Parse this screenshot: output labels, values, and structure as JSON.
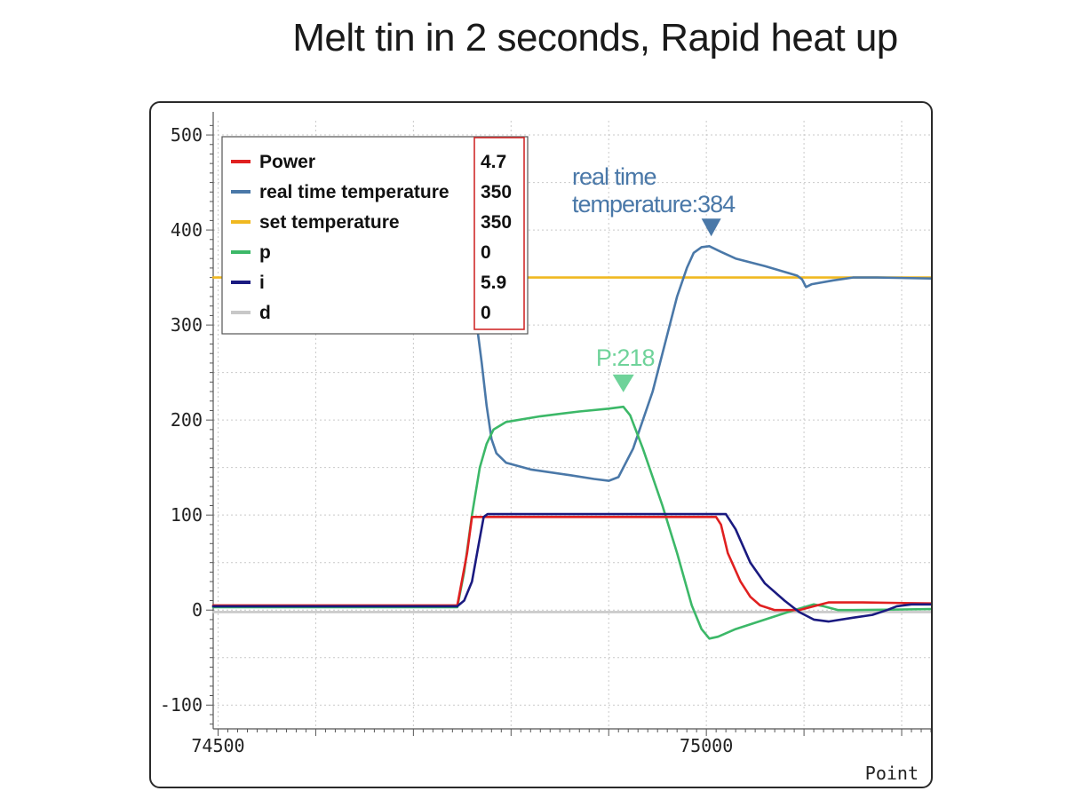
{
  "headline": "Melt tin in 2 seconds,  Rapid heat up",
  "chart_data": {
    "type": "line",
    "xlabel": "Point",
    "ylabel": "",
    "xlim": [
      74495,
      75230
    ],
    "ylim": [
      -125,
      515
    ],
    "x_ticks": [
      74500,
      75000
    ],
    "y_ticks": [
      500,
      400,
      300,
      200,
      100,
      0,
      -100
    ],
    "grid": true,
    "legend_position": "top-left",
    "legend": [
      {
        "name": "Power",
        "value": "4.7",
        "color": "#e02020"
      },
      {
        "name": "real time temperature",
        "value": "350",
        "color": "#4a78a8"
      },
      {
        "name": "set temperature",
        "value": "350",
        "color": "#f0b820"
      },
      {
        "name": "p",
        "value": "0",
        "color": "#3cb868"
      },
      {
        "name": "i",
        "value": "5.9",
        "color": "#1a1a80"
      },
      {
        "name": "d",
        "value": "0",
        "color": "#c8c8c8"
      }
    ],
    "series": [
      {
        "name": "set temperature",
        "color": "#f0b820",
        "points": [
          [
            74495,
            350
          ],
          [
            75230,
            350
          ]
        ]
      },
      {
        "name": "d",
        "color": "#c8c8c8",
        "points": [
          [
            74495,
            -2
          ],
          [
            75230,
            -2
          ]
        ]
      },
      {
        "name": "real time temperature",
        "color": "#4a78a8",
        "points": [
          [
            74765,
            300
          ],
          [
            74770,
            260
          ],
          [
            74775,
            215
          ],
          [
            74780,
            180
          ],
          [
            74785,
            165
          ],
          [
            74795,
            155
          ],
          [
            74820,
            148
          ],
          [
            74860,
            142
          ],
          [
            74885,
            138
          ],
          [
            74900,
            136
          ],
          [
            74910,
            140
          ],
          [
            74925,
            170
          ],
          [
            74945,
            230
          ],
          [
            74960,
            290
          ],
          [
            74970,
            330
          ],
          [
            74980,
            360
          ],
          [
            74987,
            376
          ],
          [
            74995,
            382
          ],
          [
            75003,
            383
          ],
          [
            75015,
            377
          ],
          [
            75030,
            370
          ],
          [
            75060,
            362
          ],
          [
            75080,
            356
          ],
          [
            75093,
            352
          ],
          [
            75098,
            348
          ],
          [
            75102,
            340
          ],
          [
            75108,
            343
          ],
          [
            75130,
            347
          ],
          [
            75150,
            350
          ],
          [
            75175,
            350
          ],
          [
            75230,
            349
          ]
        ]
      },
      {
        "name": "p",
        "color": "#3cb868",
        "points": [
          [
            74495,
            3
          ],
          [
            74745,
            3
          ],
          [
            74752,
            40
          ],
          [
            74760,
            100
          ],
          [
            74768,
            150
          ],
          [
            74775,
            175
          ],
          [
            74782,
            190
          ],
          [
            74795,
            198
          ],
          [
            74830,
            204
          ],
          [
            74870,
            209
          ],
          [
            74900,
            212
          ],
          [
            74915,
            214
          ],
          [
            74922,
            205
          ],
          [
            74935,
            170
          ],
          [
            74955,
            110
          ],
          [
            74970,
            60
          ],
          [
            74985,
            5
          ],
          [
            74995,
            -20
          ],
          [
            75003,
            -30
          ],
          [
            75012,
            -28
          ],
          [
            75030,
            -20
          ],
          [
            75060,
            -10
          ],
          [
            75090,
            0
          ],
          [
            75110,
            6
          ],
          [
            75120,
            4
          ],
          [
            75135,
            0
          ],
          [
            75150,
            0
          ],
          [
            75230,
            1
          ]
        ]
      },
      {
        "name": "Power",
        "color": "#e02020",
        "points": [
          [
            74495,
            5
          ],
          [
            74745,
            5
          ],
          [
            74755,
            60
          ],
          [
            74760,
            98
          ],
          [
            74765,
            98
          ],
          [
            75010,
            98
          ],
          [
            75015,
            90
          ],
          [
            75022,
            60
          ],
          [
            75035,
            30
          ],
          [
            75045,
            14
          ],
          [
            75055,
            5
          ],
          [
            75070,
            0
          ],
          [
            75095,
            0
          ],
          [
            75110,
            4
          ],
          [
            75125,
            8
          ],
          [
            75160,
            8
          ],
          [
            75230,
            7
          ]
        ]
      },
      {
        "name": "i",
        "color": "#1a1a80",
        "points": [
          [
            74495,
            4
          ],
          [
            74745,
            4
          ],
          [
            74752,
            10
          ],
          [
            74760,
            30
          ],
          [
            74767,
            70
          ],
          [
            74772,
            98
          ],
          [
            74776,
            101
          ],
          [
            75020,
            101
          ],
          [
            75030,
            85
          ],
          [
            75045,
            50
          ],
          [
            75060,
            28
          ],
          [
            75080,
            10
          ],
          [
            75095,
            -2
          ],
          [
            75110,
            -10
          ],
          [
            75125,
            -12
          ],
          [
            75150,
            -8
          ],
          [
            75170,
            -5
          ],
          [
            75185,
            0
          ],
          [
            75195,
            4
          ],
          [
            75210,
            6
          ],
          [
            75230,
            6
          ]
        ]
      }
    ],
    "annotations": [
      {
        "text_line1": "real time",
        "text_line2": "temperature:384",
        "x": 75005,
        "y": 384,
        "color": "#4a78a8"
      },
      {
        "text": "P:218",
        "x": 74915,
        "y": 218,
        "color": "#6fd39a"
      }
    ]
  }
}
